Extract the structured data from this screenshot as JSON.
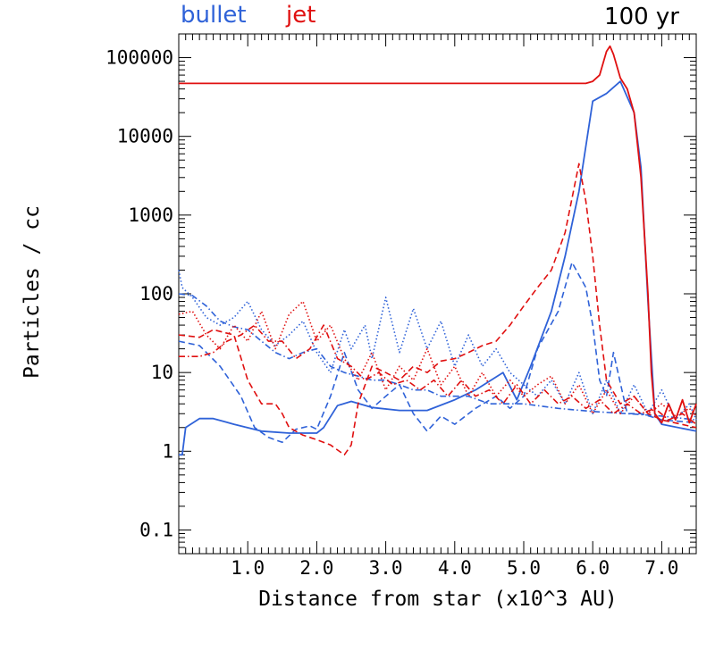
{
  "legend": {
    "bullet_label": "bullet",
    "jet_label": "jet"
  },
  "panel_label": "100 yr",
  "colors": {
    "bullet": "#2f62d8",
    "jet": "#e01010",
    "axis": "#000000"
  },
  "chart_data": {
    "type": "line",
    "title": "",
    "xlabel": "Distance from star (x10^3 AU)",
    "ylabel": "Particles / cc",
    "xlim": [
      0,
      7.5
    ],
    "ylim": [
      0.05,
      200000
    ],
    "yscale": "log",
    "x_ticks": [
      1.0,
      2.0,
      3.0,
      4.0,
      5.0,
      6.0,
      7.0
    ],
    "x_tick_labels": [
      "1.0",
      "2.0",
      "3.0",
      "4.0",
      "5.0",
      "6.0",
      "7.0"
    ],
    "y_ticks": [
      0.1,
      1,
      10,
      100,
      1000,
      10000,
      100000
    ],
    "y_tick_labels": [
      "0.1",
      "1",
      "10",
      "100",
      "1000",
      "10000",
      "100000"
    ],
    "grid": false,
    "legend_position": "top-left",
    "series": [
      {
        "name": "bullet",
        "style": "solid",
        "color": "#2f62d8",
        "points": [
          [
            0.0,
            0.9
          ],
          [
            0.05,
            0.9
          ],
          [
            0.1,
            2.0
          ],
          [
            0.3,
            2.6
          ],
          [
            0.5,
            2.6
          ],
          [
            0.8,
            2.2
          ],
          [
            1.2,
            1.8
          ],
          [
            1.6,
            1.7
          ],
          [
            2.0,
            1.7
          ],
          [
            2.1,
            2.0
          ],
          [
            2.3,
            3.8
          ],
          [
            2.5,
            4.3
          ],
          [
            2.8,
            3.6
          ],
          [
            3.2,
            3.3
          ],
          [
            3.6,
            3.3
          ],
          [
            4.0,
            4.5
          ],
          [
            4.3,
            6.0
          ],
          [
            4.7,
            10
          ],
          [
            4.9,
            4.5
          ],
          [
            5.1,
            12
          ],
          [
            5.4,
            60
          ],
          [
            5.6,
            300
          ],
          [
            5.8,
            2000
          ],
          [
            6.0,
            28000
          ],
          [
            6.2,
            35000
          ],
          [
            6.4,
            50000
          ],
          [
            6.6,
            20000
          ],
          [
            6.7,
            4000
          ],
          [
            6.8,
            80
          ],
          [
            6.9,
            3
          ],
          [
            7.0,
            2.2
          ],
          [
            7.5,
            1.8
          ]
        ]
      },
      {
        "name": "bullet",
        "style": "dashed",
        "color": "#2f62d8",
        "points": [
          [
            0.0,
            25
          ],
          [
            0.3,
            22
          ],
          [
            0.6,
            12
          ],
          [
            0.9,
            5
          ],
          [
            1.1,
            2.0
          ],
          [
            1.3,
            1.5
          ],
          [
            1.5,
            1.3
          ],
          [
            1.7,
            1.9
          ],
          [
            1.9,
            2.1
          ],
          [
            2.0,
            1.9
          ],
          [
            2.2,
            5
          ],
          [
            2.4,
            18
          ],
          [
            2.6,
            6
          ],
          [
            2.8,
            3.5
          ],
          [
            3.0,
            5
          ],
          [
            3.2,
            7
          ],
          [
            3.4,
            3
          ],
          [
            3.6,
            1.8
          ],
          [
            3.8,
            2.8
          ],
          [
            4.0,
            2.2
          ],
          [
            4.3,
            3.5
          ],
          [
            4.6,
            5
          ],
          [
            4.8,
            3.5
          ],
          [
            5.0,
            5
          ],
          [
            5.2,
            20
          ],
          [
            5.5,
            60
          ],
          [
            5.7,
            250
          ],
          [
            5.9,
            120
          ],
          [
            6.0,
            40
          ],
          [
            6.1,
            8
          ],
          [
            6.2,
            5
          ],
          [
            6.3,
            18
          ],
          [
            6.5,
            3
          ],
          [
            6.7,
            3
          ],
          [
            7.0,
            2.5
          ],
          [
            7.5,
            2.3
          ]
        ]
      },
      {
        "name": "bullet",
        "style": "dotted",
        "color": "#2f62d8",
        "points": [
          [
            0.0,
            200
          ],
          [
            0.05,
            120
          ],
          [
            0.2,
            90
          ],
          [
            0.4,
            50
          ],
          [
            0.6,
            40
          ],
          [
            0.8,
            50
          ],
          [
            1.0,
            80
          ],
          [
            1.2,
            35
          ],
          [
            1.4,
            22
          ],
          [
            1.6,
            30
          ],
          [
            1.8,
            45
          ],
          [
            2.0,
            18
          ],
          [
            2.2,
            10
          ],
          [
            2.4,
            35
          ],
          [
            2.5,
            20
          ],
          [
            2.7,
            40
          ],
          [
            2.8,
            15
          ],
          [
            3.0,
            90
          ],
          [
            3.2,
            18
          ],
          [
            3.4,
            65
          ],
          [
            3.6,
            20
          ],
          [
            3.8,
            45
          ],
          [
            4.0,
            12
          ],
          [
            4.2,
            30
          ],
          [
            4.4,
            12
          ],
          [
            4.6,
            20
          ],
          [
            4.8,
            10
          ],
          [
            5.0,
            7
          ],
          [
            5.2,
            5
          ],
          [
            5.4,
            8
          ],
          [
            5.6,
            4
          ],
          [
            5.8,
            10
          ],
          [
            6.0,
            3
          ],
          [
            6.2,
            8
          ],
          [
            6.4,
            3
          ],
          [
            6.6,
            7
          ],
          [
            6.8,
            3
          ],
          [
            7.0,
            6
          ],
          [
            7.2,
            2.5
          ],
          [
            7.4,
            4
          ],
          [
            7.5,
            2.5
          ]
        ]
      },
      {
        "name": "bullet",
        "style": "dashdot",
        "color": "#2f62d8",
        "points": [
          [
            0.0,
            100
          ],
          [
            0.2,
            95
          ],
          [
            0.4,
            70
          ],
          [
            0.6,
            45
          ],
          [
            0.8,
            38
          ],
          [
            1.0,
            35
          ],
          [
            1.2,
            25
          ],
          [
            1.4,
            18
          ],
          [
            1.6,
            15
          ],
          [
            1.8,
            18
          ],
          [
            2.0,
            20
          ],
          [
            2.2,
            12
          ],
          [
            2.4,
            10
          ],
          [
            2.6,
            9
          ],
          [
            2.8,
            8
          ],
          [
            3.0,
            8
          ],
          [
            3.2,
            7
          ],
          [
            3.4,
            6
          ],
          [
            3.6,
            6
          ],
          [
            3.8,
            5
          ],
          [
            4.0,
            5
          ],
          [
            4.2,
            5
          ],
          [
            4.5,
            4
          ],
          [
            5.0,
            4
          ],
          [
            5.5,
            3.5
          ],
          [
            6.0,
            3.2
          ],
          [
            6.5,
            3
          ],
          [
            7.0,
            2.8
          ],
          [
            7.5,
            2.5
          ]
        ]
      },
      {
        "name": "jet",
        "style": "solid",
        "color": "#e01010",
        "points": [
          [
            0.0,
            47000
          ],
          [
            1.0,
            47000
          ],
          [
            2.0,
            47000
          ],
          [
            3.0,
            47000
          ],
          [
            4.0,
            47000
          ],
          [
            5.0,
            47000
          ],
          [
            5.9,
            47000
          ],
          [
            6.0,
            50000
          ],
          [
            6.1,
            60000
          ],
          [
            6.2,
            120000
          ],
          [
            6.25,
            140000
          ],
          [
            6.3,
            110000
          ],
          [
            6.4,
            55000
          ],
          [
            6.5,
            40000
          ],
          [
            6.6,
            20000
          ],
          [
            6.7,
            3000
          ],
          [
            6.8,
            100
          ],
          [
            6.85,
            10
          ],
          [
            6.9,
            3
          ],
          [
            7.0,
            2.3
          ],
          [
            7.1,
            4
          ],
          [
            7.2,
            2.5
          ],
          [
            7.3,
            4.5
          ],
          [
            7.4,
            2.3
          ],
          [
            7.5,
            4
          ]
        ]
      },
      {
        "name": "jet",
        "style": "dashed",
        "color": "#e01010",
        "points": [
          [
            0.0,
            30
          ],
          [
            0.3,
            28
          ],
          [
            0.5,
            35
          ],
          [
            0.8,
            30
          ],
          [
            1.0,
            8
          ],
          [
            1.2,
            4
          ],
          [
            1.4,
            4
          ],
          [
            1.5,
            3
          ],
          [
            1.6,
            2.0
          ],
          [
            1.8,
            1.6
          ],
          [
            2.0,
            1.4
          ],
          [
            2.2,
            1.2
          ],
          [
            2.4,
            0.9
          ],
          [
            2.5,
            1.2
          ],
          [
            2.6,
            4
          ],
          [
            2.8,
            12
          ],
          [
            3.0,
            10
          ],
          [
            3.2,
            8
          ],
          [
            3.4,
            12
          ],
          [
            3.6,
            10
          ],
          [
            3.8,
            14
          ],
          [
            4.0,
            15
          ],
          [
            4.2,
            18
          ],
          [
            4.4,
            22
          ],
          [
            4.6,
            25
          ],
          [
            4.8,
            40
          ],
          [
            5.0,
            70
          ],
          [
            5.2,
            120
          ],
          [
            5.4,
            200
          ],
          [
            5.6,
            600
          ],
          [
            5.8,
            4500
          ],
          [
            5.9,
            1500
          ],
          [
            6.0,
            300
          ],
          [
            6.1,
            40
          ],
          [
            6.2,
            8
          ],
          [
            6.4,
            4
          ],
          [
            6.6,
            5
          ],
          [
            6.8,
            3
          ],
          [
            7.0,
            2.5
          ],
          [
            7.5,
            2.0
          ]
        ]
      },
      {
        "name": "jet",
        "style": "dotted",
        "color": "#e01010",
        "points": [
          [
            0.0,
            55
          ],
          [
            0.2,
            60
          ],
          [
            0.4,
            30
          ],
          [
            0.6,
            20
          ],
          [
            0.8,
            40
          ],
          [
            1.0,
            25
          ],
          [
            1.2,
            60
          ],
          [
            1.4,
            20
          ],
          [
            1.6,
            55
          ],
          [
            1.8,
            80
          ],
          [
            2.0,
            25
          ],
          [
            2.2,
            40
          ],
          [
            2.4,
            15
          ],
          [
            2.6,
            8
          ],
          [
            2.8,
            18
          ],
          [
            3.0,
            6
          ],
          [
            3.2,
            12
          ],
          [
            3.4,
            8
          ],
          [
            3.6,
            20
          ],
          [
            3.8,
            7
          ],
          [
            4.0,
            12
          ],
          [
            4.2,
            5
          ],
          [
            4.4,
            10
          ],
          [
            4.6,
            5
          ],
          [
            4.8,
            8
          ],
          [
            5.0,
            5
          ],
          [
            5.2,
            7
          ],
          [
            5.4,
            9
          ],
          [
            5.6,
            4
          ],
          [
            5.8,
            7
          ],
          [
            6.0,
            3
          ],
          [
            6.2,
            6
          ],
          [
            6.4,
            3
          ],
          [
            6.6,
            5
          ],
          [
            6.8,
            3
          ],
          [
            7.0,
            4
          ],
          [
            7.2,
            2.8
          ],
          [
            7.4,
            3.5
          ],
          [
            7.5,
            2.8
          ]
        ]
      },
      {
        "name": "jet",
        "style": "dashdot",
        "color": "#e01010",
        "points": [
          [
            0.0,
            16
          ],
          [
            0.3,
            16
          ],
          [
            0.5,
            18
          ],
          [
            0.7,
            25
          ],
          [
            0.9,
            30
          ],
          [
            1.1,
            40
          ],
          [
            1.3,
            25
          ],
          [
            1.5,
            25
          ],
          [
            1.7,
            15
          ],
          [
            1.9,
            20
          ],
          [
            2.1,
            40
          ],
          [
            2.3,
            15
          ],
          [
            2.5,
            12
          ],
          [
            2.7,
            8
          ],
          [
            2.9,
            10
          ],
          [
            3.1,
            7
          ],
          [
            3.3,
            8
          ],
          [
            3.5,
            6
          ],
          [
            3.7,
            8
          ],
          [
            3.9,
            5
          ],
          [
            4.1,
            8
          ],
          [
            4.3,
            5
          ],
          [
            4.5,
            6
          ],
          [
            4.7,
            4
          ],
          [
            4.9,
            7
          ],
          [
            5.1,
            4
          ],
          [
            5.3,
            6
          ],
          [
            5.5,
            4
          ],
          [
            5.7,
            5
          ],
          [
            5.9,
            3.5
          ],
          [
            6.1,
            4.5
          ],
          [
            6.3,
            3
          ],
          [
            6.5,
            4
          ],
          [
            6.7,
            3
          ],
          [
            6.9,
            3.5
          ],
          [
            7.1,
            2.5
          ],
          [
            7.3,
            3
          ],
          [
            7.5,
            2.2
          ]
        ]
      }
    ]
  }
}
